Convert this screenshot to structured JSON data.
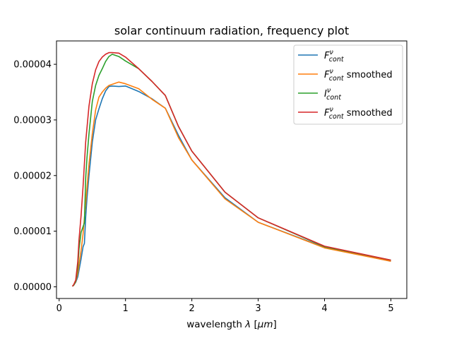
{
  "chart_data": {
    "type": "line",
    "title": "solar continuum radiation, frequency plot",
    "xlabel": "wavelength λ [μm]",
    "xlabel_parts": [
      "wavelength ",
      "λ",
      " [",
      "μm",
      "]"
    ],
    "ylabel": "",
    "xlim": [
      -0.04,
      5.24
    ],
    "ylim": [
      -2.1e-06,
      4.42e-05
    ],
    "xticks": [
      0,
      1,
      2,
      3,
      4,
      5
    ],
    "xtick_labels": [
      "0",
      "1",
      "2",
      "3",
      "4",
      "5"
    ],
    "yticks": [
      0,
      1e-05,
      2e-05,
      3e-05,
      4e-05
    ],
    "ytick_labels": [
      "0.00000",
      "0.00001",
      "0.00002",
      "0.00003",
      "0.00004"
    ],
    "grid": false,
    "legend_position": "top-right",
    "series": [
      {
        "legend": {
          "base": "F",
          "sup": "ν",
          "sub": "cont",
          "suffix": ""
        },
        "color": "#1f77b4",
        "x": [
          0.2,
          0.22,
          0.25,
          0.28,
          0.3,
          0.33,
          0.36,
          0.38,
          0.4,
          0.42,
          0.45,
          0.5,
          0.55,
          0.6,
          0.65,
          0.7,
          0.75,
          0.8,
          0.9,
          1.0,
          1.2,
          1.4,
          1.6,
          1.8,
          2.0,
          2.5,
          3.0,
          4.0,
          5.0
        ],
        "y": [
          1e-07,
          3e-07,
          8e-07,
          1.8e-06,
          3e-06,
          5e-06,
          7.2e-06,
          7.8e-06,
          1.25e-05,
          1.6e-05,
          2e-05,
          2.6e-05,
          3e-05,
          3.2e-05,
          3.38e-05,
          3.52e-05,
          3.6e-05,
          3.61e-05,
          3.6e-05,
          3.61e-05,
          3.51e-05,
          3.38e-05,
          3.21e-05,
          2.72e-05,
          2.28e-05,
          1.6e-05,
          1.16e-05,
          7.1e-06,
          4.6e-06
        ]
      },
      {
        "legend": {
          "base": "F",
          "sup": "ν",
          "sub": "cont",
          "suffix": " smoothed"
        },
        "color": "#ff7f0e",
        "x": [
          0.2,
          0.22,
          0.25,
          0.28,
          0.3,
          0.33,
          0.36,
          0.4,
          0.45,
          0.5,
          0.55,
          0.6,
          0.65,
          0.7,
          0.75,
          0.8,
          0.9,
          1.0,
          1.2,
          1.4,
          1.6,
          1.8,
          2.0,
          2.5,
          3.0,
          4.0,
          5.0
        ],
        "y": [
          1e-07,
          3e-07,
          9e-07,
          2.5e-06,
          4e-06,
          6.5e-06,
          9.5e-06,
          1.5e-05,
          2.2e-05,
          2.75e-05,
          3.18e-05,
          3.41e-05,
          3.5e-05,
          3.57e-05,
          3.62e-05,
          3.64e-05,
          3.68e-05,
          3.65e-05,
          3.56e-05,
          3.37e-05,
          3.21e-05,
          2.68e-05,
          2.28e-05,
          1.58e-05,
          1.16e-05,
          7e-06,
          4.6e-06
        ]
      },
      {
        "legend": {
          "base": "I",
          "sup": "ν",
          "sub": "cont",
          "suffix": ""
        },
        "color": "#2ca02c",
        "x": [
          0.2,
          0.22,
          0.25,
          0.28,
          0.3,
          0.33,
          0.36,
          0.38,
          0.4,
          0.42,
          0.45,
          0.5,
          0.55,
          0.6,
          0.65,
          0.7,
          0.75,
          0.8,
          0.9,
          1.0,
          1.2,
          1.4,
          1.6,
          1.8,
          2.0,
          2.5,
          3.0,
          4.0,
          5.0
        ],
        "y": [
          1e-07,
          3e-07,
          1e-06,
          3.5e-06,
          6.8e-06,
          9.8e-06,
          1.08e-05,
          1.15e-05,
          1.95e-05,
          2.33e-05,
          2.75e-05,
          3.33e-05,
          3.62e-05,
          3.8e-05,
          3.92e-05,
          4.05e-05,
          4.14e-05,
          4.18e-05,
          4.14e-05,
          4.06e-05,
          3.92e-05,
          3.69e-05,
          3.44e-05,
          2.88e-05,
          2.44e-05,
          1.7e-05,
          1.24e-05,
          7.2e-06,
          4.8e-06
        ]
      },
      {
        "legend": {
          "base": "F",
          "sup": "ν",
          "sub": "cont",
          "suffix": " smoothed"
        },
        "color": "#d62728",
        "x": [
          0.2,
          0.22,
          0.25,
          0.28,
          0.3,
          0.33,
          0.36,
          0.4,
          0.45,
          0.5,
          0.55,
          0.6,
          0.65,
          0.7,
          0.75,
          0.8,
          0.9,
          1.0,
          1.2,
          1.4,
          1.6,
          1.8,
          2.0,
          2.5,
          3.0,
          4.0,
          5.0
        ],
        "y": [
          1e-07,
          4e-07,
          1.2e-06,
          4.5e-06,
          8.5e-06,
          1.28e-05,
          1.8e-05,
          2.6e-05,
          3.25e-05,
          3.65e-05,
          3.9e-05,
          4.05e-05,
          4.13e-05,
          4.18e-05,
          4.21e-05,
          4.21e-05,
          4.2e-05,
          4.13e-05,
          3.92e-05,
          3.69e-05,
          3.44e-05,
          2.88e-05,
          2.44e-05,
          1.7e-05,
          1.24e-05,
          7.3e-06,
          4.8e-06
        ]
      }
    ]
  }
}
